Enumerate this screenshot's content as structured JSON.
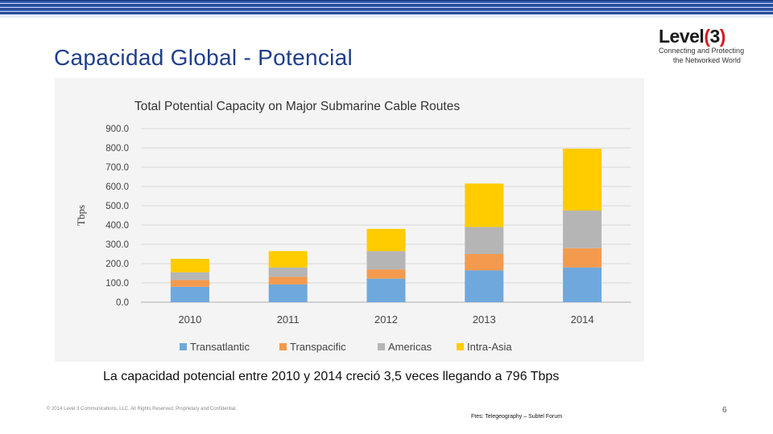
{
  "slide": {
    "title": "Capacidad Global - Potencial",
    "caption": "La capacidad potencial entre 2010 y 2014 creció 3,5 veces llegando a 796 Tbps",
    "footer_left": "© 2014 Level 3 Communications, LLC. All Rights Reserved. Proprietary and Confidential.",
    "footer_source": "Ftes: Telegeography – Subtel Forum",
    "page_number": "6"
  },
  "logo": {
    "word_main": "Level",
    "word_paren_open": "(",
    "word_num": "3",
    "word_paren_close": ")",
    "tag_line1": "Connecting and Protecting",
    "tag_line2": "the Networked World",
    "accent_color": "#d71920"
  },
  "chart_data": {
    "type": "bar",
    "stacked": true,
    "title": "Total Potential Capacity on Major Submarine Cable Routes",
    "ylabel": "Tbps",
    "xlabel": "",
    "ylim": [
      0,
      900
    ],
    "yticks": [
      "0.0",
      "100.0",
      "200.0",
      "300.0",
      "400.0",
      "500.0",
      "600.0",
      "700.0",
      "800.0",
      "900.0"
    ],
    "categories": [
      "2010",
      "2011",
      "2012",
      "2013",
      "2014"
    ],
    "series": [
      {
        "name": "Transatlantic",
        "color": "#6fa8dc",
        "values": [
          80,
          92,
          122,
          165,
          180
        ]
      },
      {
        "name": "Transpacific",
        "color": "#f39a4e",
        "values": [
          35,
          40,
          48,
          85,
          100
        ]
      },
      {
        "name": "Americas",
        "color": "#b5b5b5",
        "values": [
          40,
          48,
          95,
          140,
          195
        ]
      },
      {
        "name": "Intra-Asia",
        "color": "#ffcc00",
        "values": [
          70,
          85,
          115,
          225,
          321
        ]
      }
    ],
    "grid": true,
    "legend_position": "bottom"
  }
}
